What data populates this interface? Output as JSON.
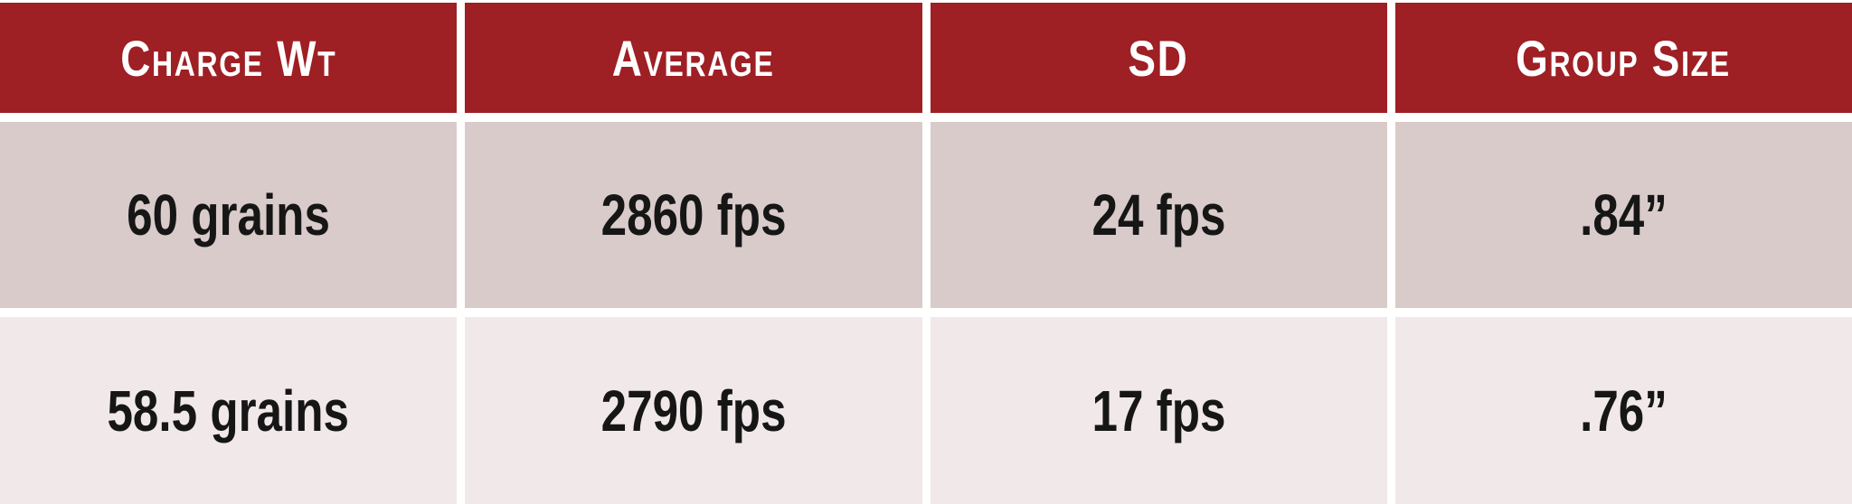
{
  "colors": {
    "header_bg": "#9e1f24",
    "header_text": "#ffffff",
    "row1_bg": "#d8cbca",
    "row2_bg": "#f1e8e9",
    "divider": "#ffffff",
    "cell_text": "#161616"
  },
  "table": {
    "columns": [
      {
        "label": "Charge Wt"
      },
      {
        "label": "Average"
      },
      {
        "label": "SD"
      },
      {
        "label": "Group Size"
      }
    ],
    "rows": [
      {
        "cells": [
          "60 grains",
          "2860 fps",
          "24 fps",
          ".84”"
        ]
      },
      {
        "cells": [
          "58.5 grains",
          "2790 fps",
          "17 fps",
          ".76”"
        ]
      }
    ]
  },
  "chart_data": {
    "type": "table",
    "columns": [
      "Charge Wt",
      "Average",
      "SD",
      "Group Size"
    ],
    "rows": [
      [
        "60 grains",
        "2860 fps",
        "24 fps",
        ".84”"
      ],
      [
        "58.5 grains",
        "2790 fps",
        "17 fps",
        ".76”"
      ]
    ]
  }
}
